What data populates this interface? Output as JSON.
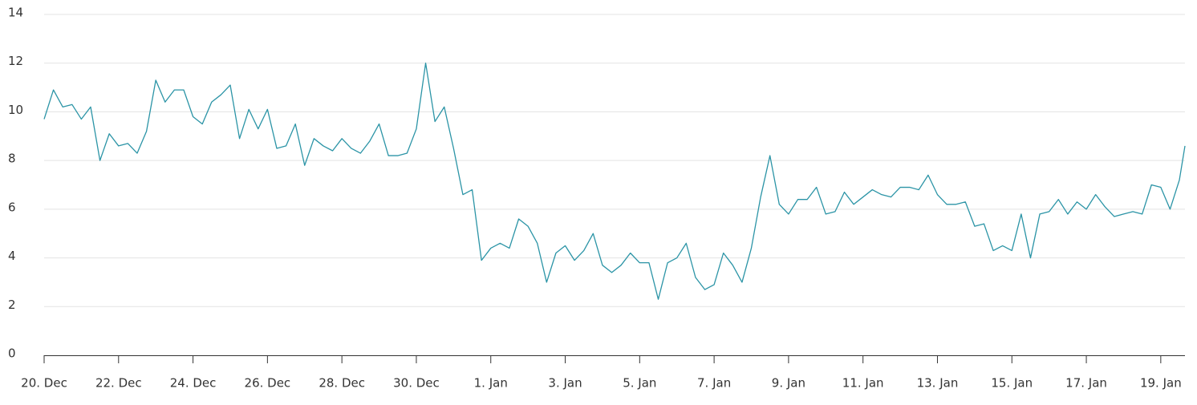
{
  "chart_data": {
    "type": "line",
    "x": [
      0,
      0.25,
      0.5,
      0.75,
      1,
      1.25,
      1.5,
      1.75,
      2,
      2.25,
      2.5,
      2.75,
      3,
      3.25,
      3.5,
      3.75,
      4,
      4.25,
      4.5,
      4.75,
      5,
      5.25,
      5.5,
      5.75,
      6,
      6.25,
      6.5,
      6.75,
      7,
      7.25,
      7.5,
      7.75,
      8,
      8.25,
      8.5,
      8.75,
      9,
      9.25,
      9.5,
      9.75,
      10,
      10.25,
      10.5,
      10.75,
      11,
      11.25,
      11.5,
      11.75,
      12,
      12.25,
      12.5,
      12.75,
      13,
      13.25,
      13.5,
      13.75,
      14,
      14.25,
      14.5,
      14.75,
      15,
      15.25,
      15.5,
      15.75,
      16,
      16.25,
      16.5,
      16.75,
      17,
      17.25,
      17.5,
      17.75,
      18,
      18.25,
      18.5,
      18.75,
      19,
      19.25,
      19.5,
      19.75,
      20,
      20.25,
      20.5,
      20.75,
      21,
      21.25,
      21.5,
      21.75,
      22,
      22.25,
      22.5,
      22.75,
      23,
      23.25,
      23.5,
      23.75,
      24,
      24.25,
      24.5,
      24.75,
      25,
      25.25,
      25.5,
      25.75,
      26,
      26.25,
      26.5,
      26.75,
      27,
      27.25,
      27.5,
      27.75,
      28,
      28.25,
      28.5,
      28.75,
      29,
      29.25,
      29.5,
      29.75,
      30,
      30.25,
      30.5,
      30.65
    ],
    "series": [
      {
        "color": "#2b94a6",
        "values": [
          9.7,
          10.9,
          10.2,
          10.3,
          9.7,
          10.2,
          8.0,
          9.1,
          8.6,
          8.7,
          8.3,
          9.2,
          11.3,
          10.4,
          10.9,
          10.9,
          9.8,
          9.5,
          10.4,
          10.7,
          11.1,
          8.9,
          10.1,
          9.3,
          10.1,
          8.5,
          8.6,
          9.5,
          7.8,
          8.9,
          8.6,
          8.4,
          8.9,
          8.5,
          8.3,
          8.8,
          9.5,
          8.2,
          8.2,
          8.3,
          9.3,
          12.0,
          9.6,
          10.2,
          8.5,
          6.6,
          6.8,
          3.9,
          4.4,
          4.6,
          4.4,
          5.6,
          5.3,
          4.6,
          3.0,
          4.2,
          4.5,
          3.9,
          4.3,
          5.0,
          3.7,
          3.4,
          3.7,
          4.2,
          3.8,
          3.8,
          2.3,
          3.8,
          4.0,
          4.6,
          3.2,
          2.7,
          2.9,
          4.2,
          3.7,
          3.0,
          4.4,
          6.5,
          8.2,
          6.2,
          5.8,
          6.4,
          6.4,
          6.9,
          5.8,
          5.9,
          6.7,
          6.2,
          6.5,
          6.8,
          6.6,
          6.5,
          6.9,
          6.9,
          6.8,
          7.4,
          6.6,
          6.2,
          6.2,
          6.3,
          5.3,
          5.4,
          4.3,
          4.5,
          4.3,
          5.8,
          4.0,
          5.8,
          5.9,
          6.4,
          5.8,
          6.3,
          6.0,
          6.6,
          6.1,
          5.7,
          5.8,
          5.9,
          5.8,
          7.0,
          6.9,
          6.0,
          7.2,
          8.6
        ]
      }
    ],
    "xlim": [
      0,
      30.65
    ],
    "xticks": [
      {
        "value": 0,
        "label": "20. Dec"
      },
      {
        "value": 2,
        "label": "22. Dec"
      },
      {
        "value": 4,
        "label": "24. Dec"
      },
      {
        "value": 6,
        "label": "26. Dec"
      },
      {
        "value": 8,
        "label": "28. Dec"
      },
      {
        "value": 10,
        "label": "30. Dec"
      },
      {
        "value": 12,
        "label": "1. Jan"
      },
      {
        "value": 14,
        "label": "3. Jan"
      },
      {
        "value": 16,
        "label": "5. Jan"
      },
      {
        "value": 18,
        "label": "7. Jan"
      },
      {
        "value": 20,
        "label": "9. Jan"
      },
      {
        "value": 22,
        "label": "11. Jan"
      },
      {
        "value": 24,
        "label": "13. Jan"
      },
      {
        "value": 26,
        "label": "15. Jan"
      },
      {
        "value": 28,
        "label": "17. Jan"
      },
      {
        "value": 30,
        "label": "19. Jan"
      }
    ],
    "ylim": [
      0,
      14
    ],
    "yticks": [
      0,
      2,
      4,
      6,
      8,
      10,
      12,
      14
    ],
    "grid": true
  }
}
